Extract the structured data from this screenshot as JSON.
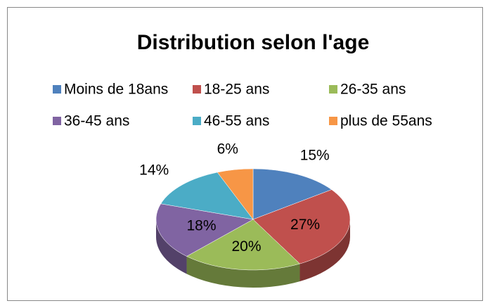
{
  "chart_data": {
    "type": "pie",
    "title": "Distribution selon l'age",
    "categories": [
      "Moins de 18ans",
      "18-25 ans",
      "26-35 ans",
      "36-45 ans",
      "46-55 ans",
      "plus de 55ans"
    ],
    "values": [
      15,
      27,
      20,
      18,
      14,
      6
    ],
    "value_labels": [
      "15%",
      "27%",
      "20%",
      "18%",
      "14%",
      "6%"
    ],
    "colors": [
      "#4f81bd",
      "#c0504d",
      "#9bbb59",
      "#8064a2",
      "#4bacc6",
      "#f79646"
    ],
    "legend": "top"
  }
}
